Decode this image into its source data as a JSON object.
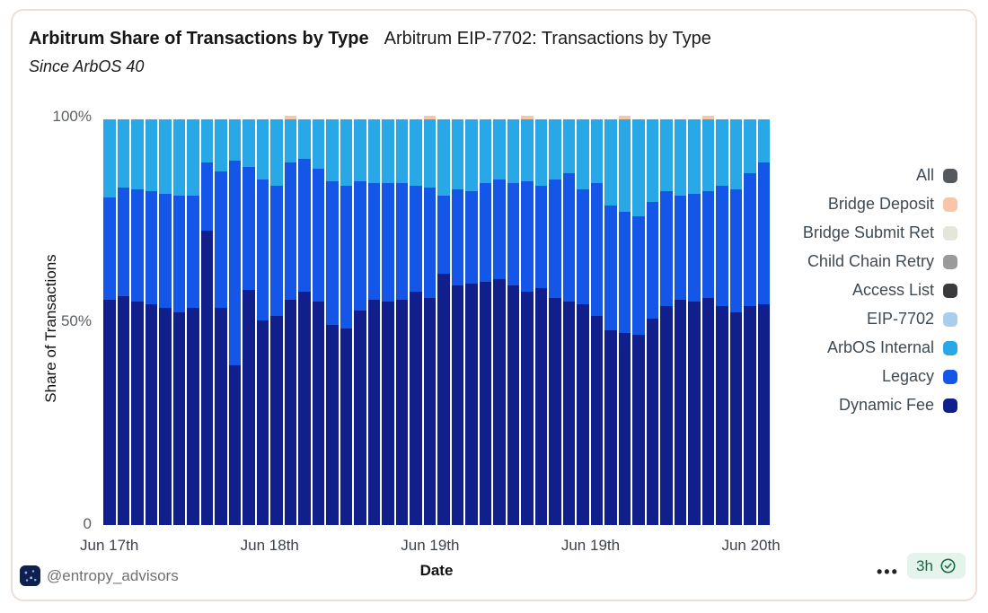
{
  "header": {
    "title": "Arbitrum Share of Transactions by Type",
    "secondary_title": "Arbitrum EIP-7702: Transactions by Type",
    "subtitle": "Since ArbOS 40"
  },
  "chart_data": {
    "type": "bar",
    "stacked": true,
    "title": "Arbitrum Share of Transactions by Type — Since ArbOS 40",
    "xlabel": "Date",
    "ylabel": "Share of Transactions",
    "ylim": [
      0,
      100
    ],
    "grid": false,
    "legend_position": "right",
    "y_ticks": [
      {
        "label": "100%",
        "value": 100
      },
      {
        "label": "50%",
        "value": 50
      },
      {
        "label": "0",
        "value": 0
      }
    ],
    "x_ticks": [
      "Jun 17th",
      "Jun 18th",
      "Jun 19th",
      "Jun 19th",
      "Jun 20th"
    ],
    "bar_count": 48,
    "series": [
      {
        "name": "Dynamic Fee",
        "color": "#101f8c",
        "values": [
          55,
          56,
          54.5,
          54,
          53,
          52,
          53,
          72,
          53,
          39,
          57.5,
          50,
          51,
          55,
          57,
          54.5,
          49,
          48,
          52.5,
          55,
          54.5,
          55,
          57,
          55.5,
          61.5,
          58.5,
          59,
          59.5,
          60,
          58.5,
          57,
          58,
          55.5,
          54.5,
          54,
          51,
          47.5,
          47,
          46.5,
          50.5,
          53.5,
          55,
          54.5,
          55.5,
          53.5,
          52,
          53.5,
          54
        ]
      },
      {
        "name": "Legacy",
        "color": "#1457e8",
        "values": [
          25,
          26.5,
          27.5,
          27.5,
          28,
          28.5,
          27.5,
          16.5,
          33.5,
          50,
          30,
          34.5,
          32,
          33.5,
          32.5,
          32.5,
          35,
          35,
          31.5,
          28.5,
          29,
          28.5,
          26,
          27,
          19,
          23.5,
          22.5,
          24,
          24.5,
          25,
          27,
          25,
          29,
          31.5,
          28,
          32.5,
          30.5,
          29.5,
          29,
          28.5,
          28,
          25.5,
          26.5,
          26,
          29.5,
          30,
          32.5,
          34.5
        ]
      },
      {
        "name": "ArbOS Internal",
        "color": "#29a8e8",
        "values": [
          19.2,
          16.7,
          17.2,
          17.7,
          18.2,
          18.7,
          18.7,
          10.7,
          12.7,
          10.2,
          11.7,
          14.7,
          16.2,
          10.7,
          9.7,
          12.2,
          15.2,
          16.2,
          15.2,
          15.7,
          15.7,
          15.7,
          16.2,
          16.7,
          18.7,
          17.2,
          17.7,
          15.7,
          14.7,
          15.7,
          15.2,
          16.2,
          14.7,
          13.2,
          17.2,
          15.7,
          21.2,
          22.7,
          23.7,
          20.2,
          17.7,
          18.7,
          18.2,
          17.7,
          16.2,
          17.2,
          13.2,
          10.7
        ]
      },
      {
        "name": "Bridge Deposit",
        "color": "#f9c5a8",
        "values": [
          0,
          0,
          0,
          0,
          0,
          0,
          0,
          0,
          0,
          0,
          0,
          0,
          0,
          0.8,
          0,
          0,
          0,
          0,
          0,
          0,
          0,
          0,
          0,
          0.8,
          0,
          0,
          0,
          0,
          0,
          0,
          0.8,
          0,
          0,
          0,
          0,
          0,
          0,
          0.8,
          0,
          0,
          0,
          0,
          0,
          0.8,
          0,
          0,
          0,
          0
        ]
      }
    ]
  },
  "legend": {
    "items": [
      {
        "label": "All",
        "color": "#55585c"
      },
      {
        "label": "Bridge Deposit",
        "color": "#f9c5a8"
      },
      {
        "label": "Bridge Submit Ret",
        "color": "#e4e6d9"
      },
      {
        "label": "Child Chain Retry",
        "color": "#9a9a9a"
      },
      {
        "label": "Access List",
        "color": "#3a3a3c"
      },
      {
        "label": "EIP-7702",
        "color": "#a9cdec"
      },
      {
        "label": "ArbOS Internal",
        "color": "#29a8e8"
      },
      {
        "label": "Legacy",
        "color": "#1457e8"
      },
      {
        "label": "Dynamic Fee",
        "color": "#101f8c"
      }
    ]
  },
  "footer": {
    "handle": "@entropy_advisors",
    "menu": "•••",
    "badge_time": "3h"
  }
}
